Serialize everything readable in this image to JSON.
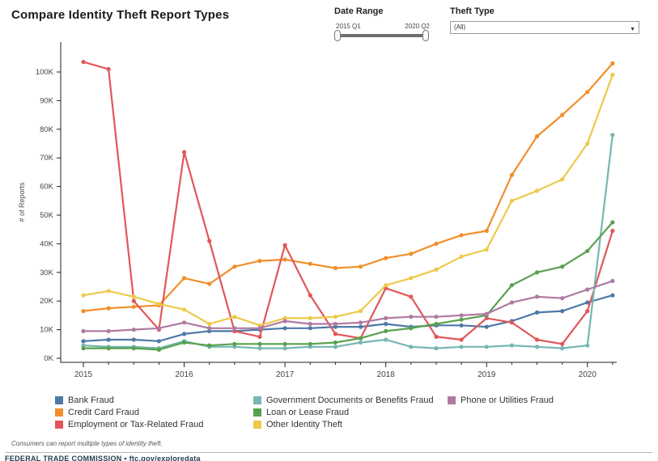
{
  "title": "Compare Identity Theft Report Types",
  "controls": {
    "date_range": {
      "label": "Date Range",
      "start": "2015 Q1",
      "end": "2020 Q2"
    },
    "theft_type": {
      "label": "Theft Type",
      "selected": "(All)",
      "caret": "▼"
    }
  },
  "footnote": "Consumers can report multiple types of identity theft.",
  "source": "FEDERAL TRADE COMMISSION • ftc.gov/exploredata",
  "chart_data": {
    "type": "line",
    "title": "Compare Identity Theft Report Types",
    "xlabel": "",
    "ylabel": "# of Reports",
    "values_unit": "thousands of reports",
    "ylim": [
      0,
      105
    ],
    "ytick_labels": [
      "0K",
      "10K",
      "20K",
      "30K",
      "40K",
      "50K",
      "60K",
      "70K",
      "80K",
      "90K",
      "100K"
    ],
    "x_year_labels": [
      "2015",
      "2016",
      "2017",
      "2018",
      "2019",
      "2020"
    ],
    "grid": false,
    "legend_position": "bottom",
    "marker": "circle",
    "categories": [
      "2015 Q1",
      "2015 Q2",
      "2015 Q3",
      "2015 Q4",
      "2016 Q1",
      "2016 Q2",
      "2016 Q3",
      "2016 Q4",
      "2017 Q1",
      "2017 Q2",
      "2017 Q3",
      "2017 Q4",
      "2018 Q1",
      "2018 Q2",
      "2018 Q3",
      "2018 Q4",
      "2019 Q1",
      "2019 Q2",
      "2019 Q3",
      "2019 Q4",
      "2020 Q1",
      "2020 Q2"
    ],
    "series": [
      {
        "name": "Bank Fraud",
        "color": "#4e79a7",
        "values": [
          6,
          6.5,
          6.5,
          6,
          8.5,
          9.5,
          9.5,
          10,
          10.5,
          10.5,
          11,
          11,
          12,
          11,
          11.5,
          11.5,
          11,
          13,
          16,
          16.5,
          19.5,
          22
        ]
      },
      {
        "name": "Credit Card Fraud",
        "color": "#f28e2b",
        "values": [
          16.5,
          17.5,
          18,
          18.5,
          28,
          26,
          32,
          34,
          34.5,
          33,
          31.5,
          32,
          35,
          36.5,
          40,
          43,
          44.5,
          64,
          77.5,
          85,
          93,
          103
        ]
      },
      {
        "name": "Employment or Tax-Related Fraud",
        "color": "#e15759",
        "values": [
          103.5,
          101,
          20,
          10,
          72,
          41,
          9.5,
          7.5,
          39.5,
          22,
          8.5,
          7,
          24.5,
          21.5,
          7.5,
          6.5,
          14,
          12.5,
          6.5,
          5,
          16.5,
          44.5
        ]
      },
      {
        "name": "Government Documents or Benefits Fraud",
        "color": "#76b7b2",
        "values": [
          4.5,
          4,
          4,
          3.5,
          6,
          4,
          4,
          3.5,
          3.5,
          4,
          4,
          5.5,
          6.5,
          4,
          3.5,
          4,
          4,
          4.5,
          4,
          3.5,
          4.5,
          78
        ]
      },
      {
        "name": "Loan or Lease Fraud",
        "color": "#59a14f",
        "values": [
          3.5,
          3.5,
          3.5,
          3,
          5.5,
          4.5,
          5,
          5,
          5,
          5,
          5.5,
          7,
          9.5,
          10.5,
          12,
          13.5,
          15,
          25.5,
          30,
          32,
          37.5,
          47.5
        ]
      },
      {
        "name": "Other Identity Theft",
        "color": "#edc949",
        "values": [
          22,
          23.5,
          21.5,
          19,
          17,
          12,
          14.5,
          11.5,
          14,
          14,
          14.5,
          16.5,
          25.5,
          28,
          31,
          35.5,
          38,
          55,
          58.5,
          62.5,
          75,
          99
        ]
      },
      {
        "name": "Phone or Utilities Fraud",
        "color": "#b07aa1",
        "values": [
          9.5,
          9.5,
          10,
          10.5,
          12.5,
          10.5,
          10.5,
          10.5,
          13,
          12,
          12,
          12.5,
          14,
          14.5,
          14.5,
          15,
          15.5,
          19.5,
          21.5,
          21,
          24,
          27
        ]
      }
    ],
    "legend_columns": [
      [
        "Bank Fraud",
        "Credit Card Fraud",
        "Employment or Tax-Related Fraud"
      ],
      [
        "Government Documents or Benefits Fraud",
        "Loan or Lease Fraud",
        "Other Identity Theft"
      ],
      [
        "Phone or Utilities Fraud"
      ]
    ]
  }
}
